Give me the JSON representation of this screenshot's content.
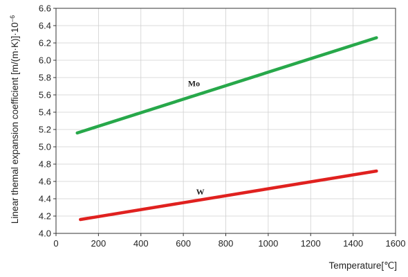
{
  "chart_data": {
    "type": "line",
    "title": "",
    "xlabel": "Temperature[℃]",
    "ylabel": "Linear themal expansion coefficient [m/(m·K)]·10",
    "ylabel_exponent": "−6",
    "xlim": [
      0,
      1600
    ],
    "ylim": [
      4.0,
      6.6
    ],
    "xticks": [
      0,
      200,
      400,
      600,
      800,
      1000,
      1200,
      1400,
      1600
    ],
    "yticks": [
      4.0,
      4.2,
      4.4,
      4.6,
      4.8,
      5.0,
      5.2,
      5.4,
      5.6,
      5.8,
      6.0,
      6.2,
      6.4,
      6.6
    ],
    "grid": true,
    "legend": "inline labels",
    "series": [
      {
        "name": "Mo",
        "color": "#27a84a",
        "x": [
          100,
          1510
        ],
        "y": [
          5.16,
          6.26
        ],
        "label_at": [
          650,
          5.7
        ]
      },
      {
        "name": "W",
        "color": "#e0211f",
        "x": [
          115,
          1510
        ],
        "y": [
          4.16,
          4.72
        ],
        "label_at": [
          680,
          4.45
        ]
      }
    ]
  }
}
